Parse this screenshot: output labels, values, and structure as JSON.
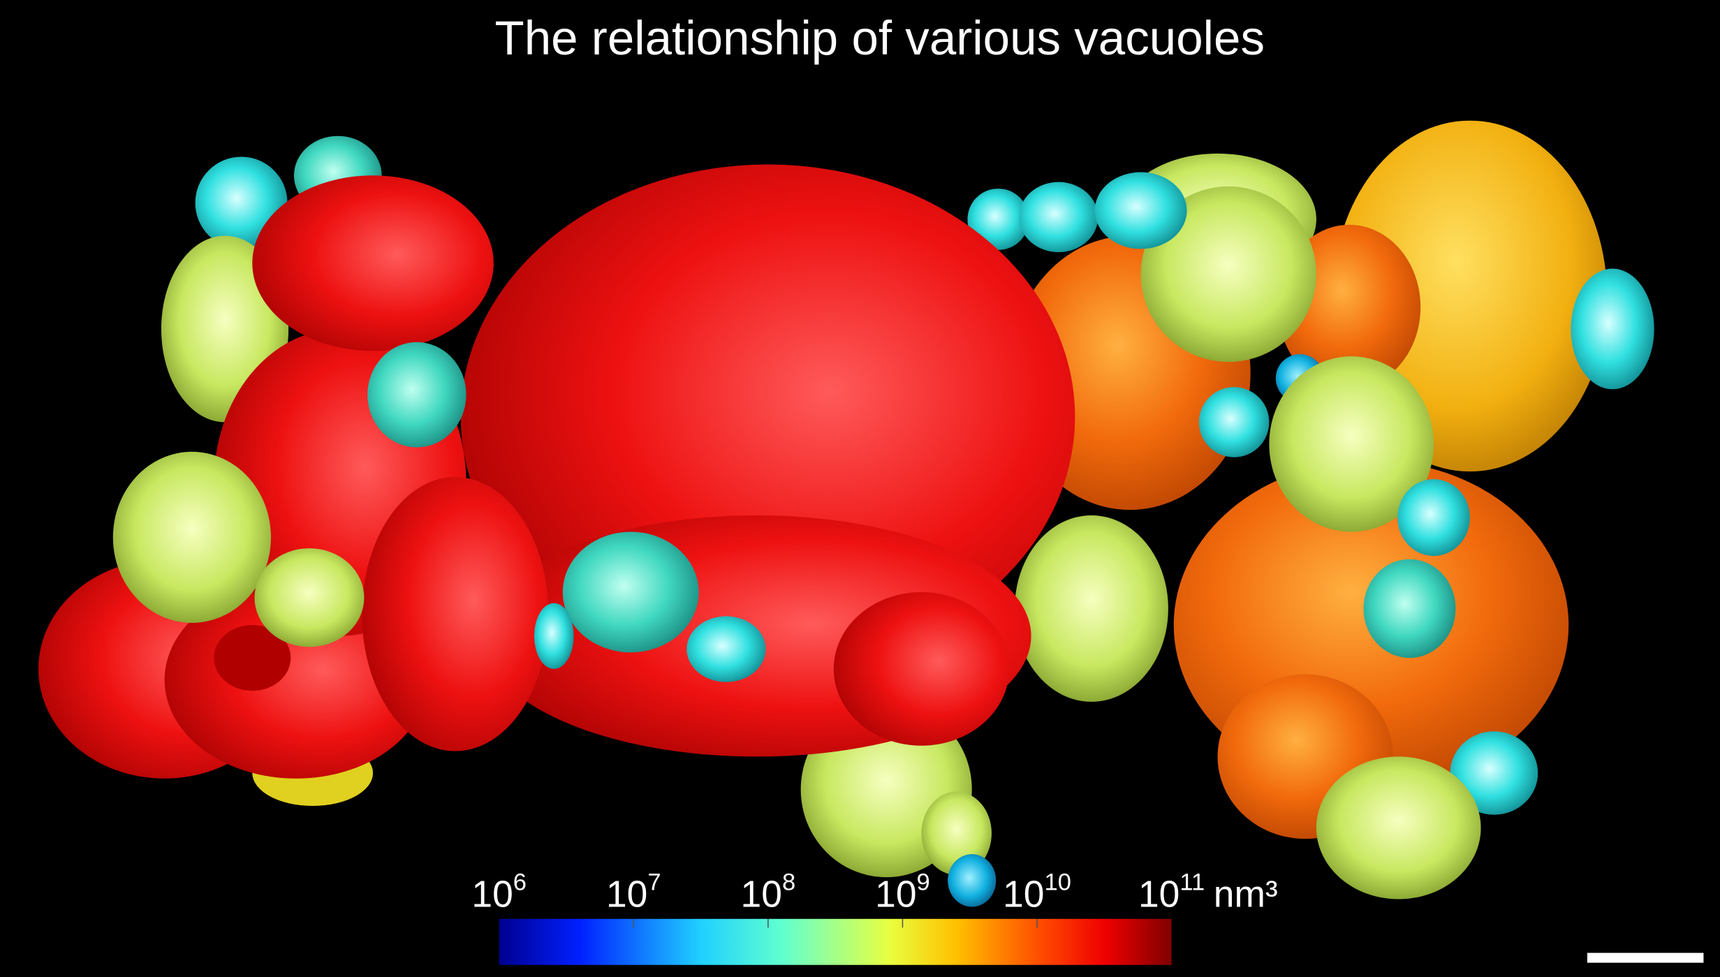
{
  "title": "The relationship of various vacuoles",
  "colorbar": {
    "ticks": [
      {
        "base": 10,
        "exponent": 6
      },
      {
        "base": 10,
        "exponent": 7
      },
      {
        "base": 10,
        "exponent": 8
      },
      {
        "base": 10,
        "exponent": 9
      },
      {
        "base": 10,
        "exponent": 10
      },
      {
        "base": 10,
        "exponent": 11
      }
    ],
    "unit": "nm³"
  }
}
